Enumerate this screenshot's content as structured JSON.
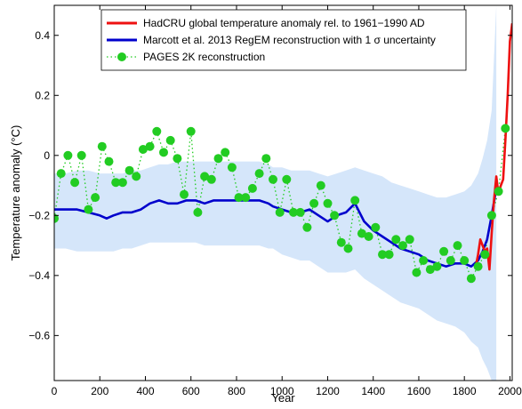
{
  "chart_data": {
    "type": "line",
    "xlabel": "Year",
    "ylabel": "Temperature anomaly (°C)",
    "xlim": [
      0,
      2010
    ],
    "ylim": [
      -0.75,
      0.5
    ],
    "xticks": [
      0,
      200,
      400,
      600,
      800,
      1000,
      1200,
      1400,
      1600,
      1800,
      2000
    ],
    "yticks": [
      -0.6,
      -0.4,
      -0.2,
      0,
      0.2,
      0.4
    ],
    "ytick_labels": [
      "−0.6",
      "−0.4",
      "−0.2",
      "0",
      "0.2",
      "0.4"
    ],
    "grid": false,
    "legend_position": "top-right",
    "colors": {
      "hadcru": "#ee1111",
      "marcott": "#0000cc",
      "pages": "#22cc22",
      "band": "#d5e6fa"
    },
    "series": [
      {
        "name": "HadCRU global temperature anomaly rel. to 1961−1990 AD",
        "style": "line",
        "x": [
          1850,
          1860,
          1870,
          1880,
          1890,
          1900,
          1910,
          1920,
          1930,
          1940,
          1950,
          1960,
          1970,
          1980,
          1990,
          2000,
          2010
        ],
        "y": [
          -0.37,
          -0.33,
          -0.28,
          -0.3,
          -0.32,
          -0.31,
          -0.38,
          -0.26,
          -0.15,
          -0.07,
          -0.13,
          -0.1,
          -0.08,
          0.05,
          0.2,
          0.38,
          0.44
        ]
      },
      {
        "name": "Marcott et al. 2013 RegEM reconstruction with 1 σ uncertainty",
        "style": "line",
        "x": [
          0,
          50,
          100,
          150,
          200,
          230,
          260,
          300,
          340,
          380,
          420,
          460,
          500,
          540,
          580,
          620,
          660,
          700,
          740,
          780,
          820,
          860,
          900,
          940,
          960,
          1000,
          1040,
          1080,
          1120,
          1160,
          1200,
          1240,
          1280,
          1320,
          1360,
          1400,
          1440,
          1480,
          1520,
          1560,
          1600,
          1640,
          1680,
          1720,
          1760,
          1800,
          1830,
          1860,
          1880,
          1900,
          1920,
          1940
        ],
        "y": [
          -0.18,
          -0.18,
          -0.18,
          -0.19,
          -0.2,
          -0.21,
          -0.2,
          -0.19,
          -0.19,
          -0.18,
          -0.16,
          -0.15,
          -0.16,
          -0.16,
          -0.15,
          -0.15,
          -0.16,
          -0.15,
          -0.15,
          -0.15,
          -0.15,
          -0.15,
          -0.15,
          -0.16,
          -0.17,
          -0.18,
          -0.19,
          -0.19,
          -0.18,
          -0.2,
          -0.22,
          -0.2,
          -0.19,
          -0.16,
          -0.22,
          -0.25,
          -0.27,
          -0.29,
          -0.31,
          -0.32,
          -0.33,
          -0.35,
          -0.36,
          -0.37,
          -0.36,
          -0.36,
          -0.37,
          -0.35,
          -0.32,
          -0.28,
          -0.2,
          -0.11
        ],
        "band_lower": [
          -0.31,
          -0.31,
          -0.32,
          -0.32,
          -0.32,
          -0.32,
          -0.32,
          -0.31,
          -0.31,
          -0.3,
          -0.29,
          -0.29,
          -0.29,
          -0.29,
          -0.29,
          -0.29,
          -0.3,
          -0.3,
          -0.3,
          -0.3,
          -0.3,
          -0.3,
          -0.3,
          -0.31,
          -0.31,
          -0.33,
          -0.34,
          -0.35,
          -0.35,
          -0.37,
          -0.39,
          -0.39,
          -0.39,
          -0.38,
          -0.41,
          -0.43,
          -0.45,
          -0.47,
          -0.49,
          -0.5,
          -0.51,
          -0.53,
          -0.55,
          -0.56,
          -0.57,
          -0.59,
          -0.62,
          -0.64,
          -0.68,
          -0.71,
          -0.75,
          -0.75
        ],
        "band_upper": [
          -0.06,
          -0.06,
          -0.05,
          -0.05,
          -0.06,
          -0.06,
          -0.06,
          -0.06,
          -0.05,
          -0.05,
          -0.04,
          -0.03,
          -0.03,
          -0.02,
          -0.02,
          -0.02,
          -0.02,
          -0.02,
          -0.02,
          -0.02,
          -0.02,
          -0.02,
          -0.02,
          -0.03,
          -0.04,
          -0.04,
          -0.05,
          -0.05,
          -0.05,
          -0.06,
          -0.07,
          -0.06,
          -0.05,
          -0.04,
          -0.05,
          -0.06,
          -0.07,
          -0.09,
          -0.1,
          -0.11,
          -0.12,
          -0.13,
          -0.14,
          -0.14,
          -0.13,
          -0.12,
          -0.1,
          -0.06,
          -0.01,
          0.05,
          0.15,
          0.5
        ]
      },
      {
        "name": "PAGES 2K reconstruction",
        "style": "dotted-markers",
        "x": [
          0,
          30,
          60,
          90,
          120,
          150,
          180,
          210,
          240,
          270,
          300,
          330,
          360,
          390,
          420,
          450,
          480,
          510,
          540,
          570,
          600,
          630,
          660,
          690,
          720,
          750,
          780,
          810,
          840,
          870,
          900,
          930,
          960,
          990,
          1020,
          1050,
          1080,
          1110,
          1140,
          1170,
          1200,
          1230,
          1260,
          1290,
          1320,
          1350,
          1380,
          1410,
          1440,
          1470,
          1500,
          1530,
          1560,
          1590,
          1620,
          1650,
          1680,
          1710,
          1740,
          1770,
          1800,
          1830,
          1860,
          1890,
          1920,
          1950,
          1980
        ],
        "y": [
          -0.21,
          -0.06,
          0.0,
          -0.09,
          0.0,
          -0.18,
          -0.14,
          0.03,
          -0.02,
          -0.09,
          -0.09,
          -0.05,
          -0.07,
          0.02,
          0.03,
          0.08,
          0.01,
          0.05,
          -0.01,
          -0.13,
          0.08,
          -0.19,
          -0.07,
          -0.08,
          -0.01,
          0.01,
          -0.04,
          -0.14,
          -0.14,
          -0.11,
          -0.06,
          -0.01,
          -0.08,
          -0.19,
          -0.08,
          -0.19,
          -0.19,
          -0.24,
          -0.16,
          -0.1,
          -0.16,
          -0.2,
          -0.29,
          -0.31,
          -0.15,
          -0.26,
          -0.27,
          -0.24,
          -0.33,
          -0.33,
          -0.28,
          -0.3,
          -0.28,
          -0.39,
          -0.35,
          -0.38,
          -0.37,
          -0.32,
          -0.35,
          -0.3,
          -0.35,
          -0.41,
          -0.37,
          -0.33,
          -0.2,
          -0.12,
          0.09
        ]
      }
    ]
  }
}
